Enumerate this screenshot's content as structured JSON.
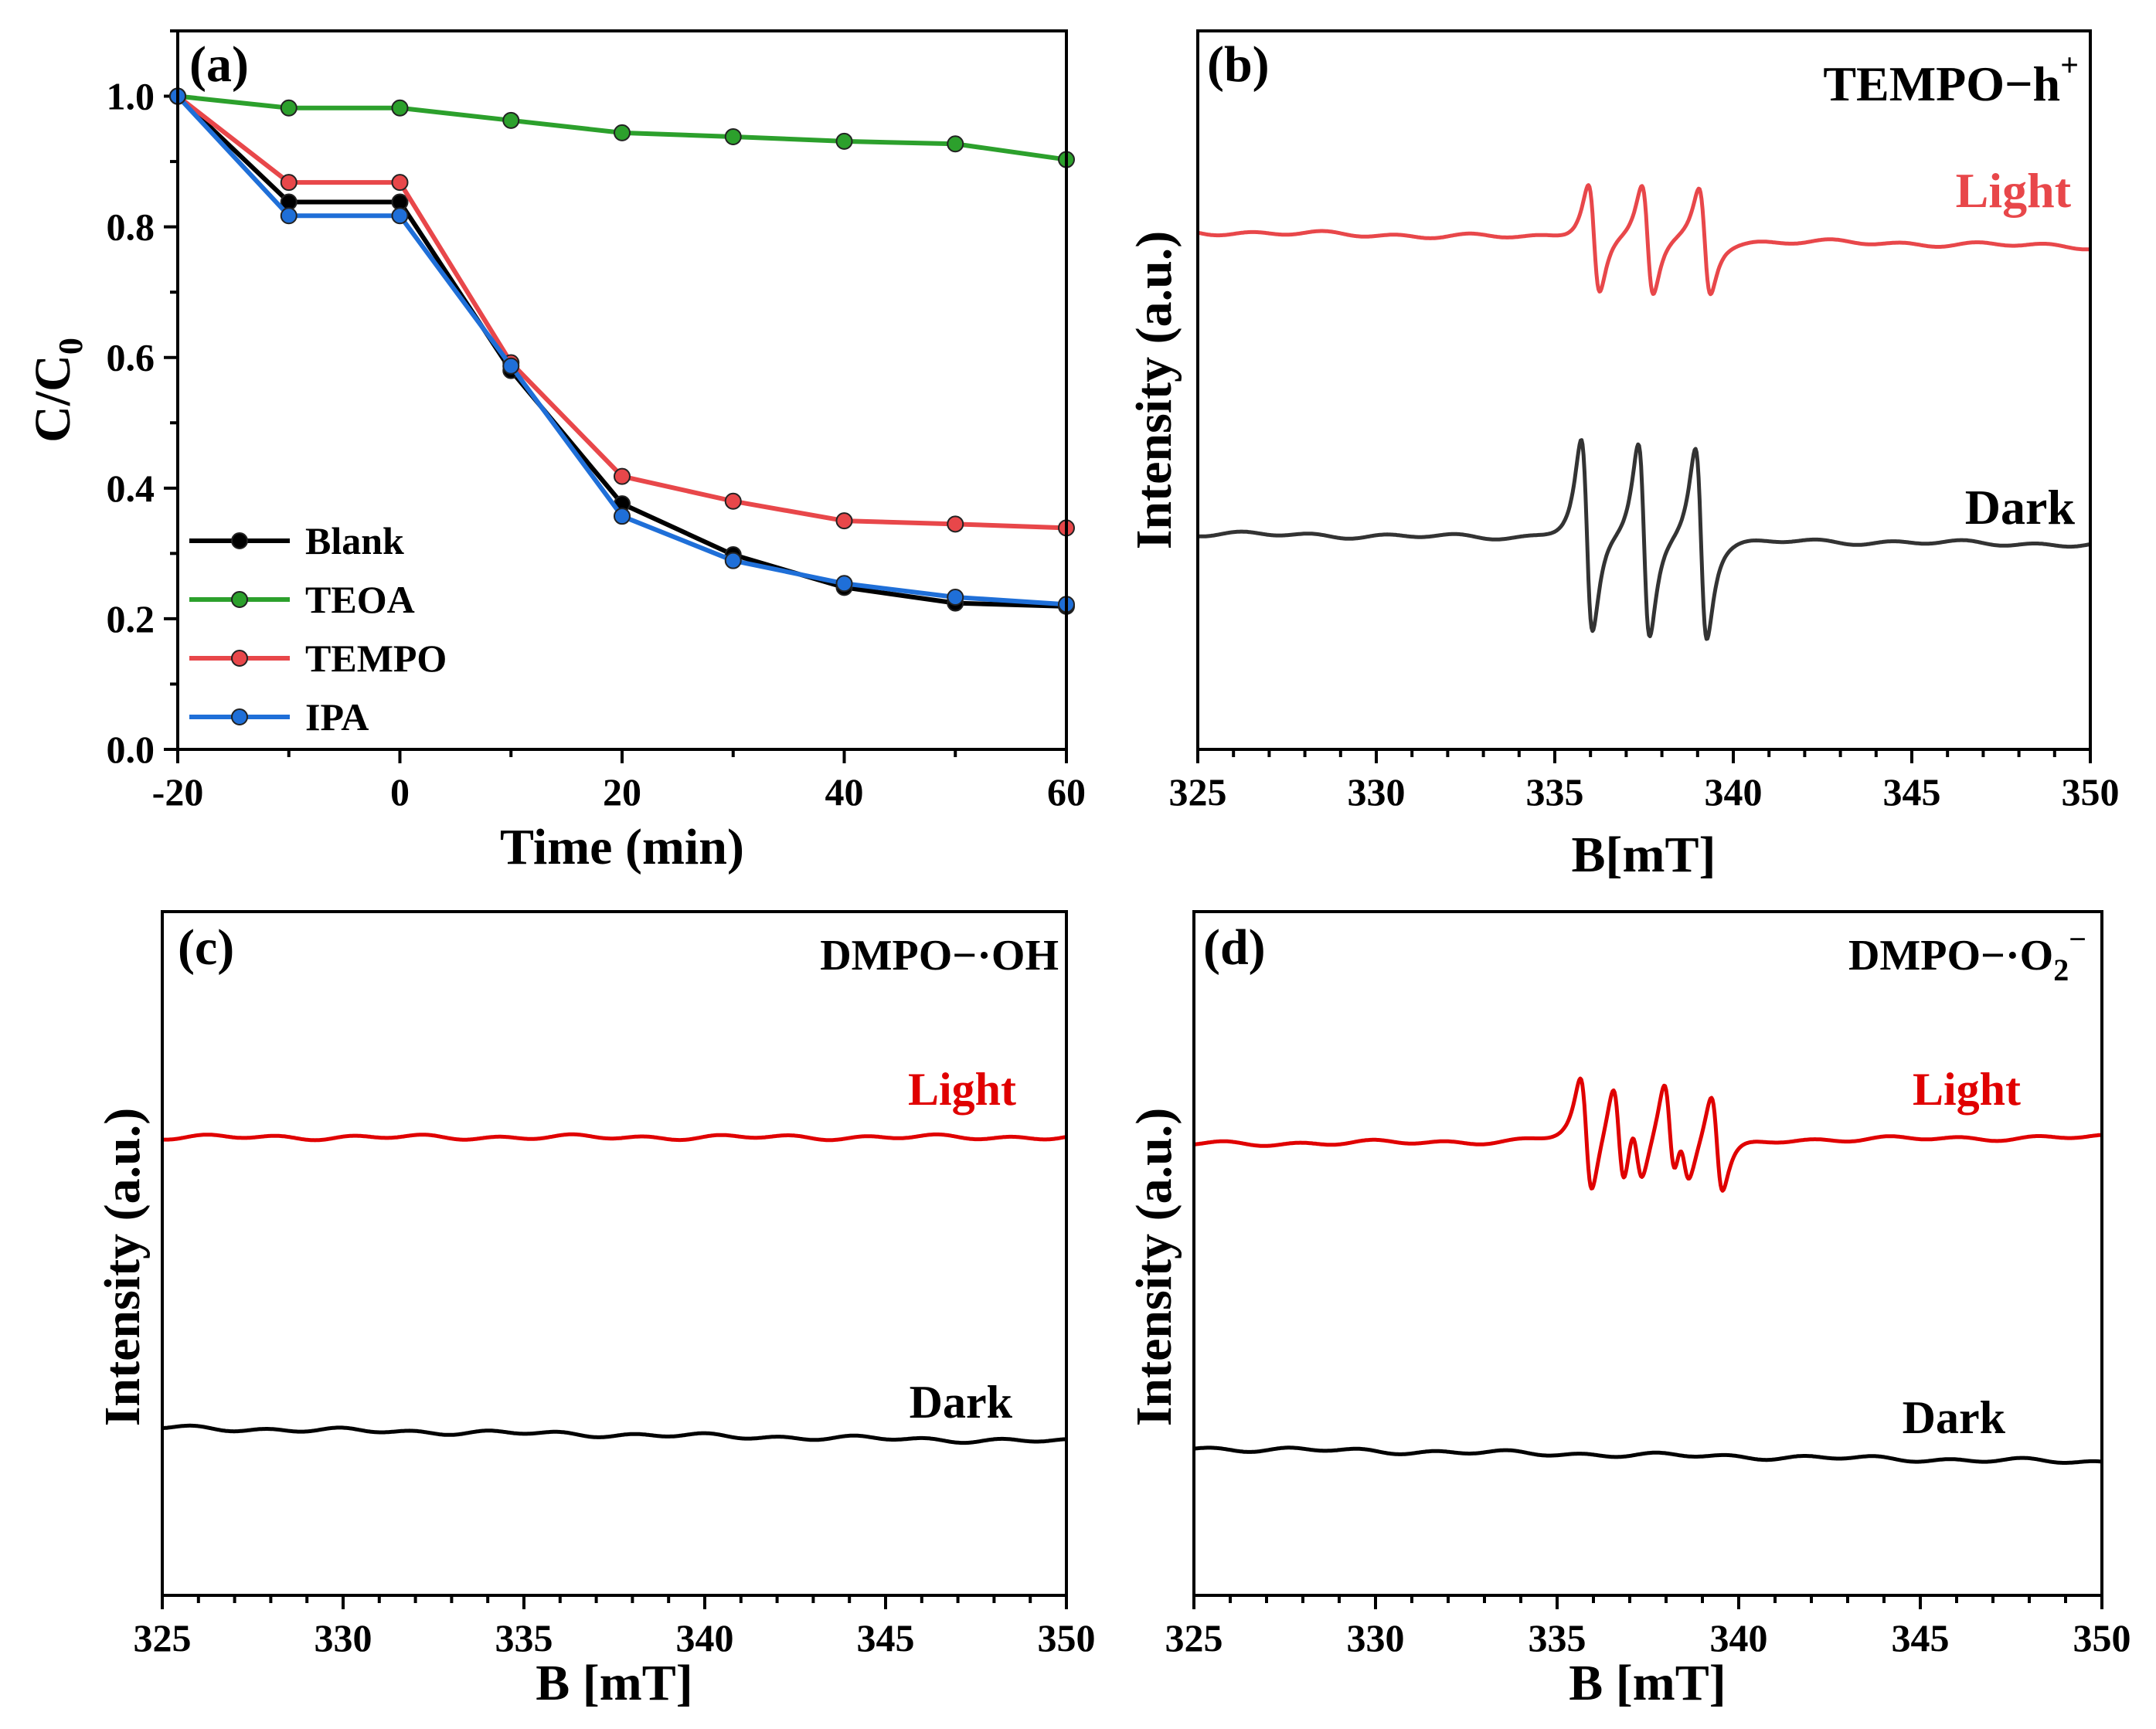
{
  "chart_data": [
    {
      "panel_label": "(a)",
      "type": "line",
      "xlabel": "Time (min)",
      "ylabel_main": "C/C",
      "ylabel_sub": "0",
      "xlim": [
        -20,
        60
      ],
      "ylim": [
        0,
        1.1
      ],
      "x_ticks": [
        "-20",
        "0",
        "20",
        "40",
        "60"
      ],
      "y_ticks": [
        "0.0",
        "0.2",
        "0.4",
        "0.6",
        "0.8",
        "1.0"
      ],
      "x": [
        -20,
        -10,
        0,
        10,
        20,
        30,
        40,
        50,
        60
      ],
      "series": [
        {
          "name": "Blank",
          "color": "#000000",
          "values": [
            1.0,
            0.838,
            0.838,
            0.58,
            0.376,
            0.298,
            0.248,
            0.224,
            0.219
          ]
        },
        {
          "name": "TEOA",
          "color": "#2ca02c",
          "values": [
            1.0,
            0.982,
            0.982,
            0.963,
            0.944,
            0.938,
            0.931,
            0.927,
            0.903
          ]
        },
        {
          "name": "TEMPO",
          "color": "#e8474a",
          "values": [
            1.0,
            0.868,
            0.868,
            0.592,
            0.418,
            0.38,
            0.35,
            0.345,
            0.339
          ]
        },
        {
          "name": "IPA",
          "color": "#1f6fd8",
          "values": [
            1.0,
            0.817,
            0.817,
            0.587,
            0.357,
            0.289,
            0.254,
            0.233,
            0.222
          ]
        }
      ],
      "legend_position": "bottom-left"
    },
    {
      "panel_label": "(b)",
      "type": "line",
      "tag": "TEMPO−h",
      "tag_sup": "+",
      "xlabel": "B[mT]",
      "ylabel": "Intensity (a.u.)",
      "xlim": [
        325,
        350
      ],
      "x_ticks": [
        "325",
        "330",
        "335",
        "340",
        "345",
        "350"
      ],
      "series": [
        {
          "name": "Light",
          "color": "#e8474a",
          "baseline": 0.72,
          "baseline_end": 0.7,
          "amplitude": 0.18,
          "lines": [
            {
              "center": 336.1,
              "amp": 1.0
            },
            {
              "center": 337.6,
              "amp": 1.0
            },
            {
              "center": 339.2,
              "amp": 0.95
            }
          ]
        },
        {
          "name": "Dark",
          "color": "#333333",
          "baseline": 0.3,
          "baseline_end": 0.285,
          "amplitude": 0.32,
          "lines": [
            {
              "center": 335.9,
              "amp": 1.0
            },
            {
              "center": 337.5,
              "amp": 1.0
            },
            {
              "center": 339.1,
              "amp": 0.98
            }
          ]
        }
      ]
    },
    {
      "panel_label": "(c)",
      "type": "line",
      "tag": "DMPO−·OH",
      "xlabel": "B [mT]",
      "ylabel": "Intensity (a.u.)",
      "xlim": [
        325,
        350
      ],
      "x_ticks": [
        "325",
        "330",
        "335",
        "340",
        "345",
        "350"
      ],
      "series": [
        {
          "name": "Light",
          "color": "#e00000",
          "baseline": 0.67,
          "baseline_end": 0.67,
          "amplitude": 0,
          "lines": []
        },
        {
          "name": "Dark",
          "color": "#000000",
          "baseline": 0.245,
          "baseline_end": 0.225,
          "amplitude": 0,
          "lines": []
        }
      ]
    },
    {
      "panel_label": "(d)",
      "type": "line",
      "tag": "DMPO−·O",
      "tag_sub": "2",
      "tag_sup": "−",
      "xlabel": "B [mT]",
      "ylabel": "Intensity (a.u.)",
      "xlim": [
        325,
        350
      ],
      "x_ticks": [
        "325",
        "330",
        "335",
        "340",
        "345",
        "350"
      ],
      "series": [
        {
          "name": "Light",
          "color": "#e00000",
          "baseline": 0.66,
          "baseline_end": 0.67,
          "amplitude": 0.2,
          "lines": [
            {
              "center": 335.8,
              "amp": 1.0
            },
            {
              "center": 336.7,
              "amp": 0.9
            },
            {
              "center": 337.2,
              "amp": 0.55
            },
            {
              "center": 338.1,
              "amp": 0.9
            },
            {
              "center": 338.5,
              "amp": 0.5
            },
            {
              "center": 339.4,
              "amp": 0.85
            }
          ]
        },
        {
          "name": "Dark",
          "color": "#000000",
          "baseline": 0.215,
          "baseline_end": 0.195,
          "amplitude": 0,
          "lines": []
        }
      ]
    }
  ]
}
